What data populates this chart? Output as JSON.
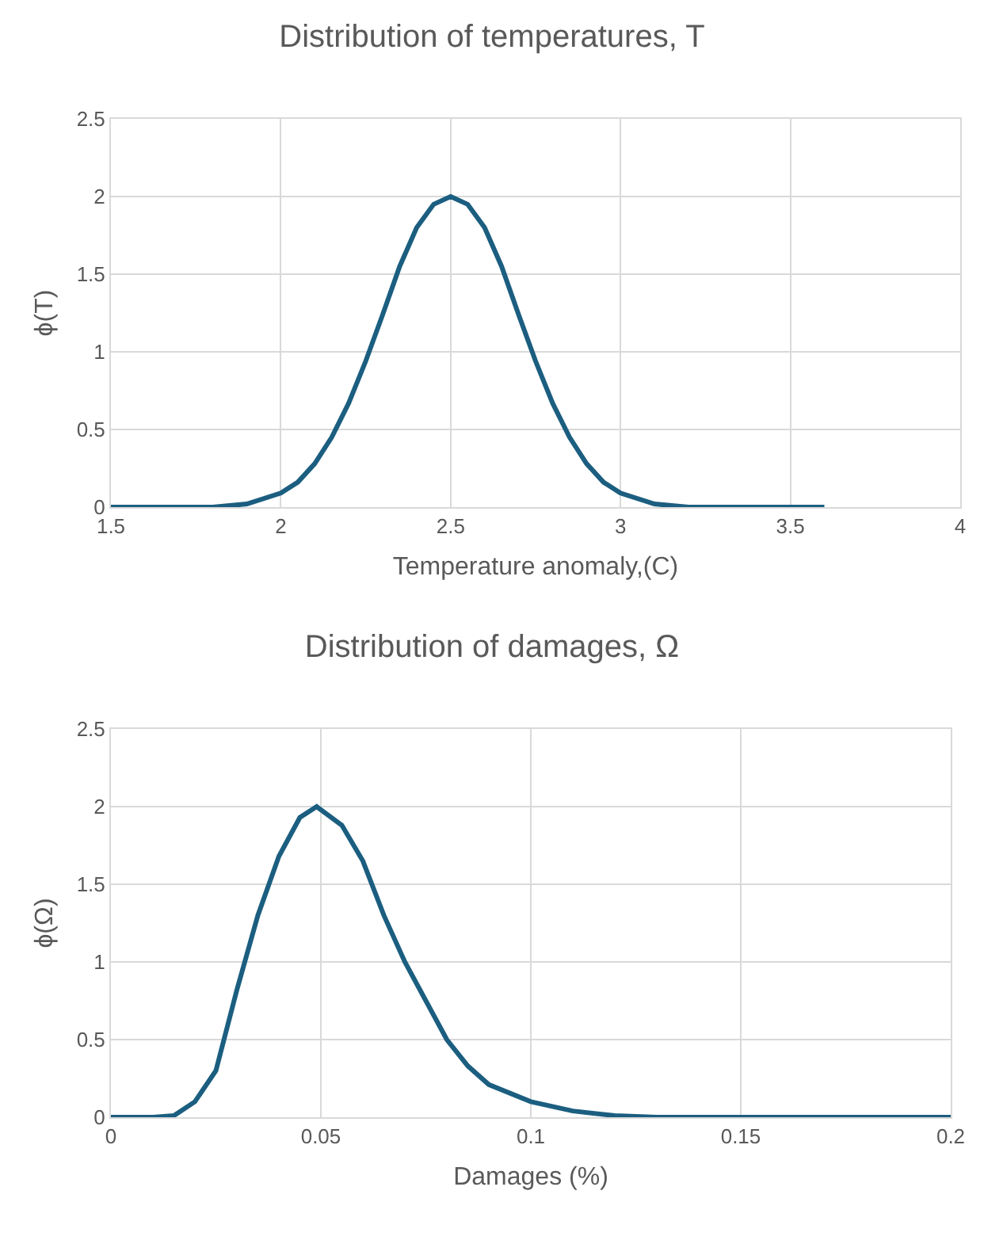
{
  "chart_data": [
    {
      "type": "line",
      "title": "Distribution of temperatures, T",
      "xlabel": "Temperature anomaly,(C)",
      "ylabel": "ϕ(T)",
      "x": [
        1.5,
        1.8,
        1.9,
        2.0,
        2.05,
        2.1,
        2.15,
        2.2,
        2.25,
        2.3,
        2.35,
        2.4,
        2.45,
        2.5,
        2.55,
        2.6,
        2.65,
        2.7,
        2.75,
        2.8,
        2.85,
        2.9,
        2.95,
        3.0,
        3.1,
        3.2,
        3.6
      ],
      "series": [
        {
          "color": "#1b5e80",
          "values": [
            0,
            0,
            0.02,
            0.09,
            0.16,
            0.28,
            0.45,
            0.67,
            0.94,
            1.24,
            1.55,
            1.8,
            1.95,
            2.0,
            1.95,
            1.8,
            1.55,
            1.24,
            0.94,
            0.67,
            0.45,
            0.28,
            0.16,
            0.09,
            0.02,
            0,
            0
          ]
        }
      ],
      "xlim": [
        1.5,
        4
      ],
      "xticks": [
        1.5,
        2,
        2.5,
        3,
        3.5,
        4
      ],
      "ylim": [
        0,
        2.5
      ],
      "yticks": [
        0,
        0.5,
        1,
        1.5,
        2,
        2.5
      ],
      "grid": true,
      "marker": "none",
      "line_style": "solid"
    },
    {
      "type": "line",
      "title": "Distribution of damages, Ω",
      "xlabel": "Damages (%)",
      "ylabel": "ϕ(Ω)",
      "x": [
        0,
        0.01,
        0.015,
        0.02,
        0.025,
        0.03,
        0.035,
        0.04,
        0.045,
        0.049,
        0.055,
        0.06,
        0.065,
        0.07,
        0.075,
        0.08,
        0.085,
        0.09,
        0.1,
        0.11,
        0.12,
        0.13,
        0.2
      ],
      "series": [
        {
          "color": "#1b5e80",
          "values": [
            0,
            0,
            0.01,
            0.1,
            0.3,
            0.82,
            1.3,
            1.68,
            1.93,
            2.0,
            1.88,
            1.65,
            1.3,
            1.0,
            0.75,
            0.5,
            0.33,
            0.21,
            0.1,
            0.04,
            0.01,
            0,
            0
          ]
        }
      ],
      "xlim": [
        0,
        0.2
      ],
      "xticks": [
        0,
        0.05,
        0.1,
        0.15,
        0.2
      ],
      "ylim": [
        0,
        2.5
      ],
      "yticks": [
        0,
        0.5,
        1,
        1.5,
        2,
        2.5
      ],
      "grid": true,
      "marker": "none",
      "line_style": "solid"
    }
  ]
}
